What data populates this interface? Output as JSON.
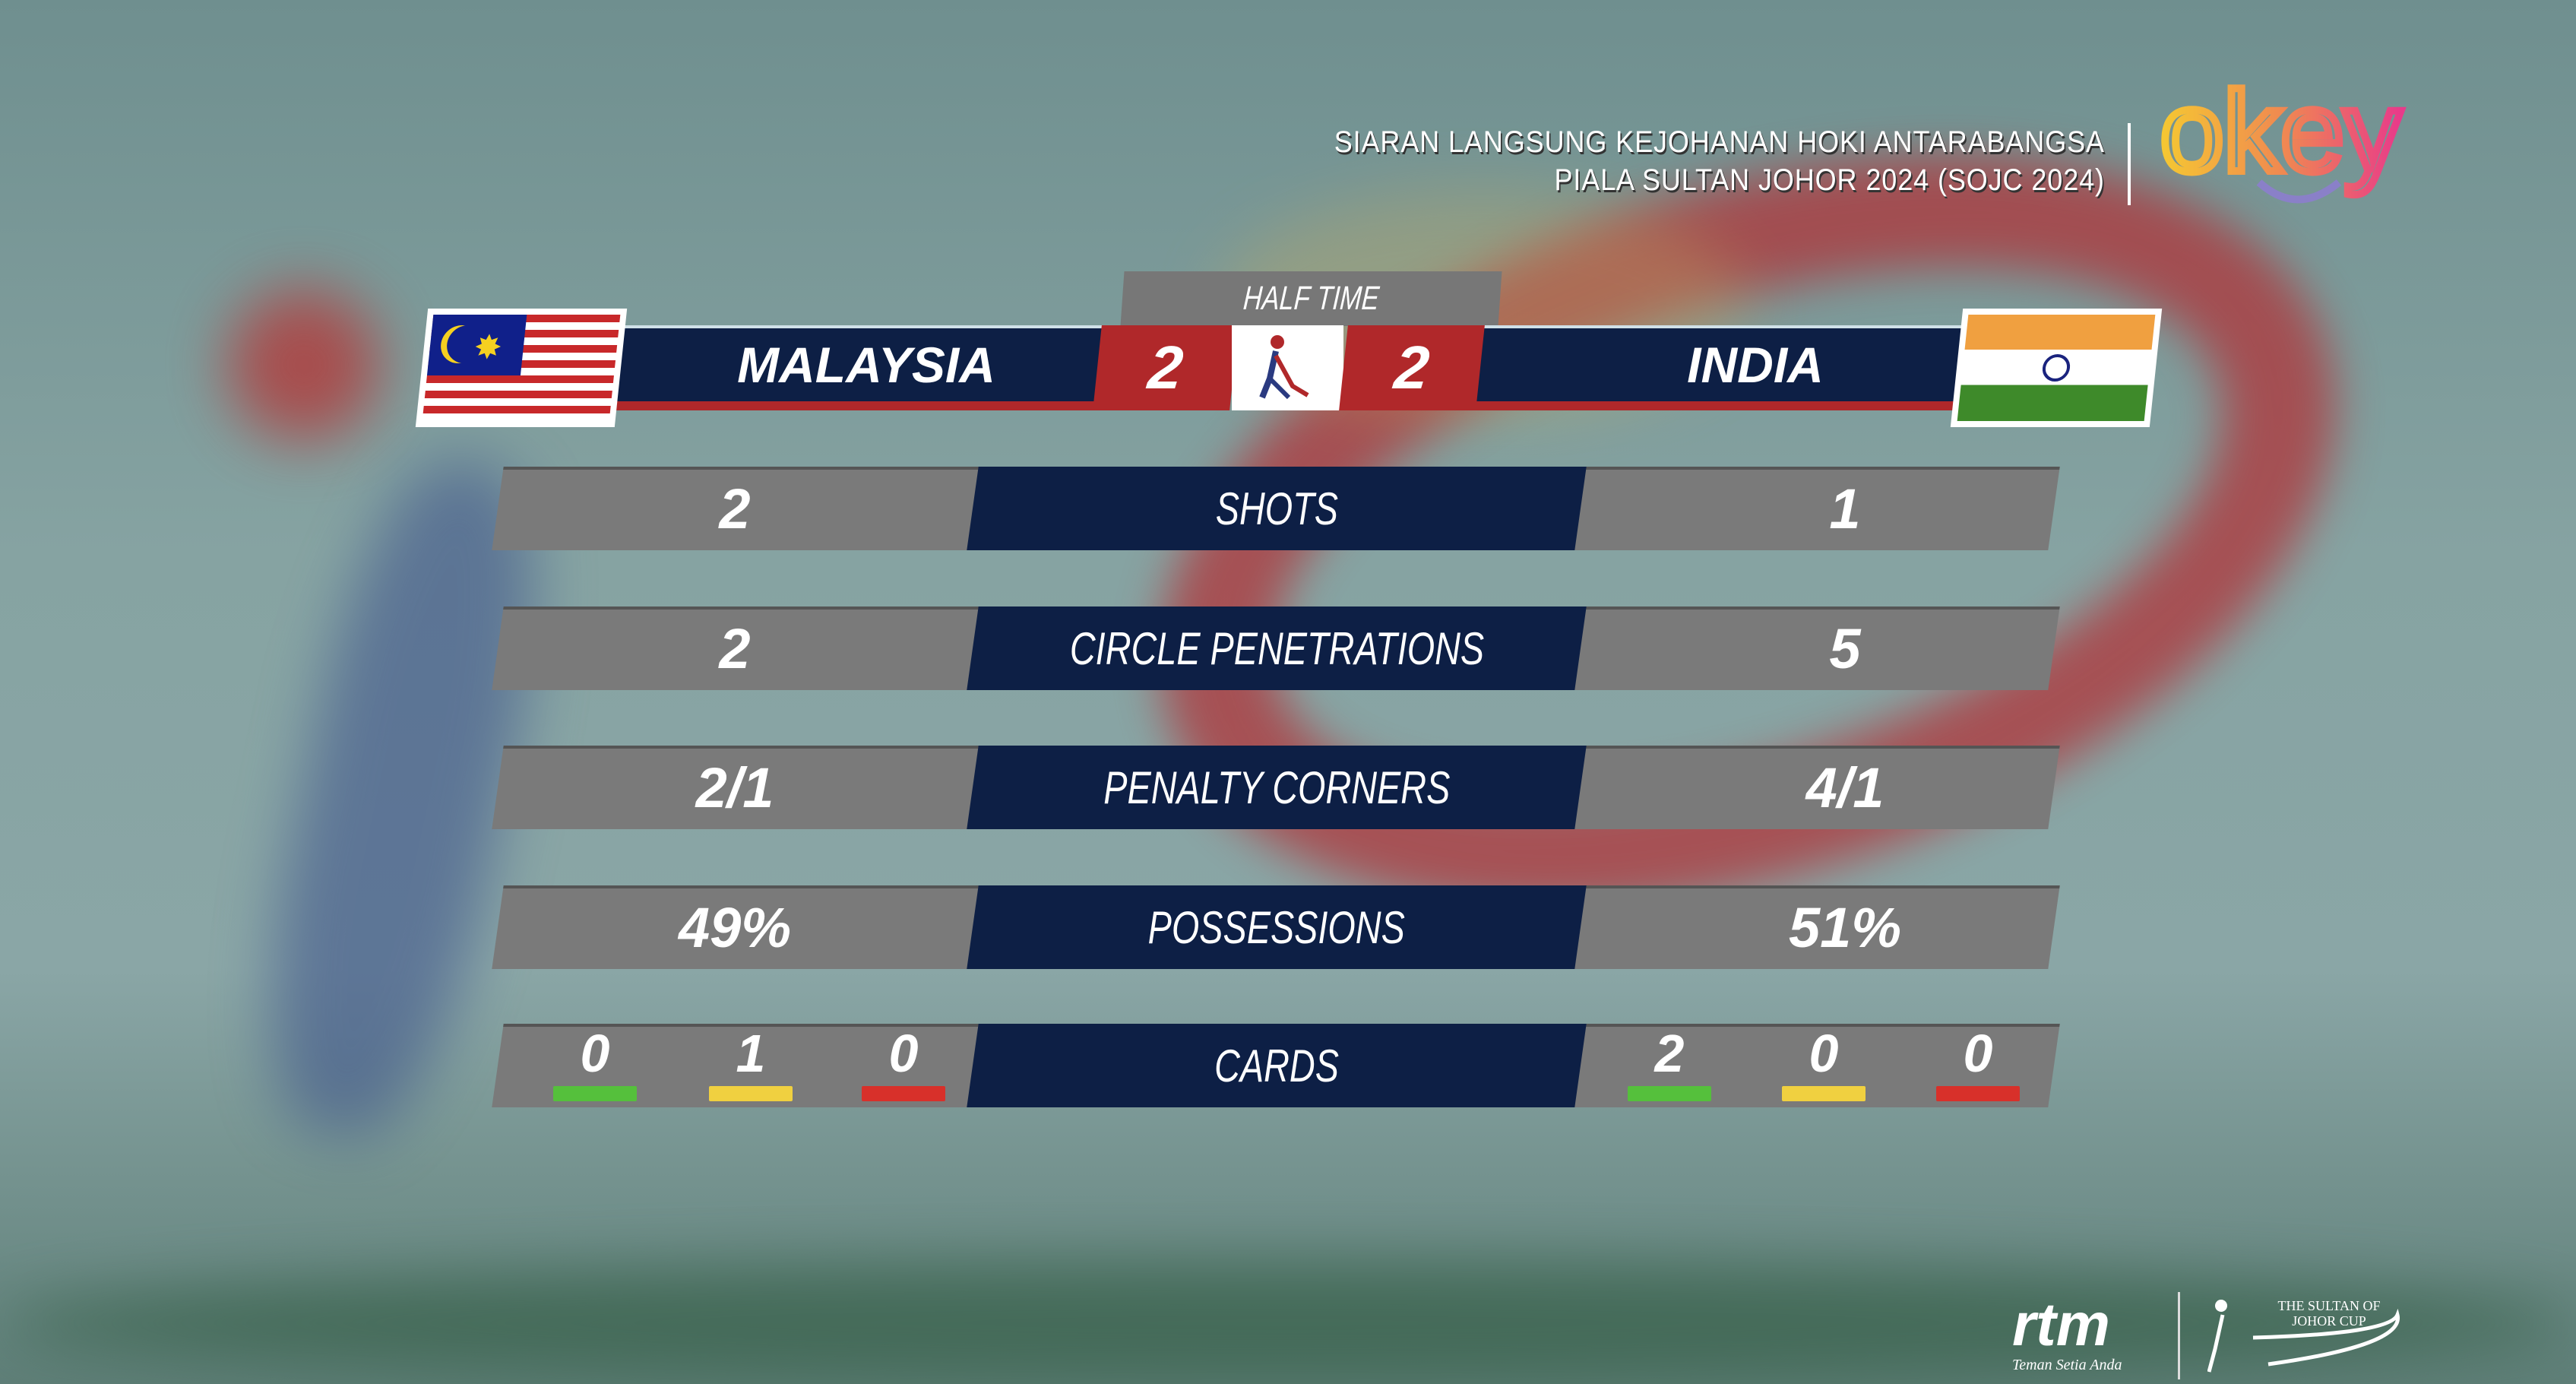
{
  "broadcast": {
    "line1": "SIARAN LANGSUNG KEJOHANAN HOKI ANTARABANGSA",
    "line2": "PIALA SULTAN JOHOR 2024 (SOJC 2024)",
    "channel_logo": "OKEY",
    "footer_logos": [
      "rtm",
      "THE SULTAN OF JOHOR CUP"
    ],
    "rtm_tagline": "Teman Setia Anda"
  },
  "scoreboard": {
    "period": "HALF TIME",
    "home": {
      "name": "MALAYSIA",
      "score": "2",
      "flag": "malaysia-flag"
    },
    "away": {
      "name": "INDIA",
      "score": "2",
      "flag": "india-flag"
    }
  },
  "stats": [
    {
      "label": "SHOTS",
      "home": "2",
      "away": "1"
    },
    {
      "label": "CIRCLE PENETRATIONS",
      "home": "2",
      "away": "5"
    },
    {
      "label": "PENALTY CORNERS",
      "home": "2/1",
      "away": "4/1"
    },
    {
      "label": "POSSESSIONS",
      "home": "49%",
      "away": "51%"
    }
  ],
  "cards": {
    "label": "CARDS",
    "home": {
      "green": "0",
      "yellow": "1",
      "red": "0"
    },
    "away": {
      "green": "2",
      "yellow": "0",
      "red": "0"
    }
  },
  "colors": {
    "navy": "#0d1f45",
    "red": "#b0282a",
    "grey": "#7a7a7a",
    "green_card": "#55c03c",
    "yellow_card": "#f0d040",
    "red_card": "#d8302a"
  }
}
